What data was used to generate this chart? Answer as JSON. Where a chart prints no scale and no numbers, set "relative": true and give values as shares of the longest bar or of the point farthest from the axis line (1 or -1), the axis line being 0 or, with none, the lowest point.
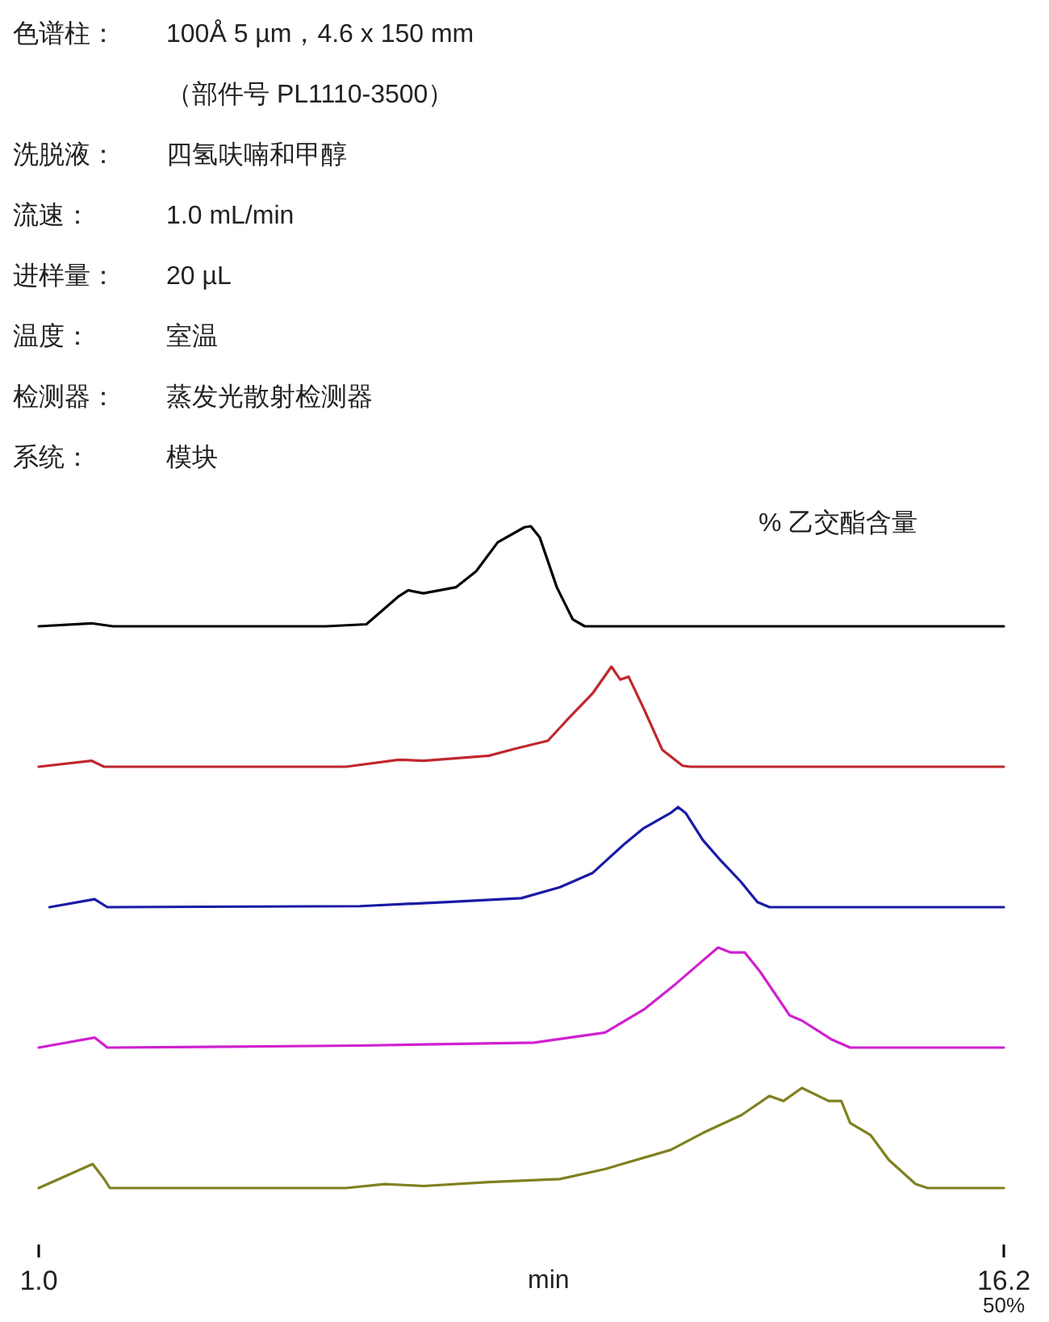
{
  "chart_data": [
    {
      "type": "line",
      "relative": true,
      "xlim": [
        1.0,
        16.2
      ],
      "tick_labels": false,
      "legend_title": "% 乙交酯含量",
      "annotations": [
        "色谱柱：",
        "100Å 5 µm，4.6 x 150 mm",
        "（部件号 PL1110-3500）",
        "洗脱液：",
        "四氢呋喃和甲醇",
        "流速：",
        "1.0 mL/min",
        "进样量：",
        "20 µL",
        "温度：",
        "室温",
        "检测器：",
        "蒸发光散射检测器",
        "系统：",
        "模块"
      ],
      "series": [
        {
          "color": "#000000",
          "x": [
            1.0,
            1.83,
            2.17,
            5.52,
            6.16,
            6.67,
            6.82,
            7.06,
            7.57,
            7.89,
            8.23,
            8.65,
            8.75,
            8.89,
            9.16,
            9.41,
            9.6,
            16.2
          ],
          "values": [
            0,
            0.03,
            0,
            0,
            0.02,
            0.3,
            0.36,
            0.33,
            0.39,
            0.55,
            0.84,
            0.99,
            1.0,
            0.89,
            0.39,
            0.07,
            0,
            0
          ]
        }
      ]
    },
    {
      "type": "line",
      "relative": true,
      "xlim": [
        1.0,
        16.2
      ],
      "tick_labels": false,
      "series": [
        {
          "color": "#c0272d",
          "x": [
            1.0,
            1.83,
            2.03,
            5.84,
            6.67,
            7.06,
            8.09,
            8.5,
            9.02,
            9.31,
            9.72,
            10.02,
            10.16,
            10.29,
            10.53,
            10.82,
            11.14,
            11.26,
            16.2
          ],
          "values": [
            0,
            0.06,
            0,
            0,
            0.07,
            0.06,
            0.11,
            0.18,
            0.26,
            0.46,
            0.73,
            1.0,
            0.87,
            0.9,
            0.58,
            0.17,
            0.01,
            0,
            0
          ]
        }
      ]
    },
    {
      "type": "line",
      "relative": true,
      "xlim": [
        1.0,
        16.2
      ],
      "tick_labels": false,
      "series": [
        {
          "color": "#1a1aa6",
          "x": [
            1.17,
            1.88,
            2.08,
            6.06,
            7.38,
            8.6,
            9.21,
            9.72,
            10.24,
            10.53,
            10.95,
            11.07,
            11.19,
            11.46,
            11.75,
            12.05,
            12.32,
            12.51,
            16.2
          ],
          "values": [
            0,
            0.08,
            0,
            0.01,
            0.05,
            0.09,
            0.2,
            0.34,
            0.64,
            0.79,
            0.94,
            1.0,
            0.94,
            0.67,
            0.46,
            0.26,
            0.05,
            0,
            0
          ]
        }
      ]
    },
    {
      "type": "line",
      "relative": true,
      "xlim": [
        1.0,
        16.2
      ],
      "tick_labels": false,
      "series": [
        {
          "color": "#d020d0",
          "x": [
            1.0,
            1.88,
            2.08,
            6.06,
            8.8,
            9.92,
            10.53,
            11.04,
            11.46,
            11.7,
            11.9,
            12.12,
            12.36,
            12.83,
            13.02,
            13.49,
            13.78,
            16.2
          ],
          "values": [
            0,
            0.1,
            0,
            0.02,
            0.05,
            0.15,
            0.38,
            0.64,
            0.87,
            1.0,
            0.95,
            0.95,
            0.76,
            0.32,
            0.27,
            0.08,
            0,
            0
          ]
        }
      ]
    },
    {
      "type": "line",
      "relative": true,
      "xlim": [
        1.0,
        16.2
      ],
      "tick_labels": "x",
      "xlabel": "min",
      "xticks": [
        {
          "value": 1.0,
          "label": "1.0"
        },
        {
          "value": 16.2,
          "label": "16.2"
        }
      ],
      "annotations": [
        "50%"
      ],
      "series": [
        {
          "color": "#808020",
          "x": [
            1.0,
            1.85,
            2.03,
            2.12,
            5.84,
            6.45,
            7.06,
            8.09,
            9.21,
            9.92,
            10.95,
            11.46,
            12.07,
            12.51,
            12.73,
            13.02,
            13.44,
            13.64,
            13.78,
            14.1,
            14.39,
            14.81,
            15.0,
            16.2
          ],
          "values": [
            0,
            0.24,
            0.09,
            0,
            0,
            0.04,
            0.02,
            0.06,
            0.09,
            0.19,
            0.38,
            0.55,
            0.73,
            0.92,
            0.87,
            1.0,
            0.87,
            0.87,
            0.65,
            0.53,
            0.28,
            0.04,
            0,
            0
          ]
        }
      ]
    }
  ]
}
